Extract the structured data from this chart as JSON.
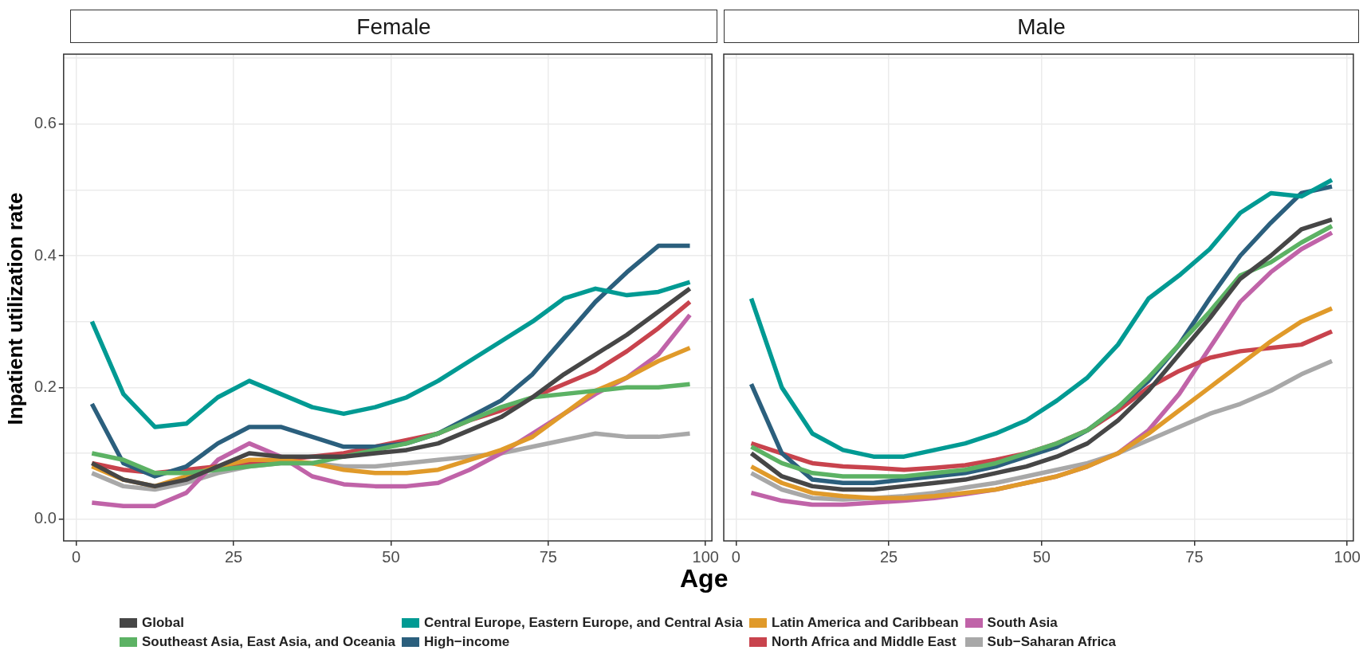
{
  "chart_data": [
    {
      "type": "line",
      "title": "Female",
      "xlabel": "Age",
      "ylabel": "Inpatient utilization rate",
      "xlim": [
        -2,
        101
      ],
      "xticks": [
        0,
        25,
        50,
        75,
        100
      ],
      "ylim": [
        -0.033,
        0.706
      ],
      "yticks": [
        {
          "value": 0,
          "label": "0.0"
        },
        {
          "value": 0.1,
          "label": null
        },
        {
          "value": 0.2,
          "label": "0.2"
        },
        {
          "value": 0.3,
          "label": null
        },
        {
          "value": 0.4,
          "label": "0.4"
        },
        {
          "value": 0.5,
          "label": null
        },
        {
          "value": 0.6,
          "label": "0.6"
        },
        {
          "value": 0.7,
          "label": null
        }
      ],
      "grid": true,
      "legend": "bottom",
      "x": [
        2.5,
        7.5,
        12.5,
        17.5,
        22.5,
        27.5,
        32.5,
        37.5,
        42.5,
        47.5,
        52.5,
        57.5,
        62.5,
        67.5,
        72.5,
        77.5,
        82.5,
        87.5,
        92.5,
        97.5
      ],
      "series": [
        {
          "name": "Global",
          "color": "#464646",
          "values": [
            0.085,
            0.06,
            0.05,
            0.06,
            0.08,
            0.1,
            0.095,
            0.095,
            0.095,
            0.1,
            0.105,
            0.115,
            0.135,
            0.155,
            0.185,
            0.22,
            0.25,
            0.28,
            0.315,
            0.35
          ]
        },
        {
          "name": "Southeast Asia, East Asia, and Oceania",
          "color": "#5cb264",
          "values": [
            0.1,
            0.09,
            0.07,
            0.07,
            0.075,
            0.08,
            0.085,
            0.085,
            0.095,
            0.105,
            0.115,
            0.13,
            0.15,
            0.17,
            0.185,
            0.19,
            0.195,
            0.2,
            0.2,
            0.205
          ]
        },
        {
          "name": "Central Europe, Eastern Europe, and Central Asia",
          "color": "#009a93",
          "values": [
            0.3,
            0.19,
            0.14,
            0.145,
            0.185,
            0.21,
            0.19,
            0.17,
            0.16,
            0.17,
            0.185,
            0.21,
            0.24,
            0.27,
            0.3,
            0.335,
            0.35,
            0.34,
            0.345,
            0.36
          ]
        },
        {
          "name": "High−income",
          "color": "#2b5f7d",
          "values": [
            0.175,
            0.085,
            0.065,
            0.08,
            0.115,
            0.14,
            0.14,
            0.125,
            0.11,
            0.11,
            0.115,
            0.13,
            0.155,
            0.18,
            0.22,
            0.275,
            0.33,
            0.375,
            0.415,
            0.415
          ]
        },
        {
          "name": "Latin America and Caribbean",
          "color": "#e09a2a",
          "values": [
            0.08,
            0.06,
            0.05,
            0.065,
            0.08,
            0.09,
            0.09,
            0.085,
            0.075,
            0.07,
            0.07,
            0.075,
            0.09,
            0.105,
            0.125,
            0.16,
            0.195,
            0.215,
            0.24,
            0.26
          ]
        },
        {
          "name": "North Africa and Middle East",
          "color": "#c8434d",
          "values": [
            0.085,
            0.075,
            0.07,
            0.075,
            0.08,
            0.085,
            0.09,
            0.095,
            0.1,
            0.11,
            0.12,
            0.13,
            0.15,
            0.165,
            0.185,
            0.205,
            0.225,
            0.255,
            0.29,
            0.33
          ]
        },
        {
          "name": "South Asia",
          "color": "#c063a8",
          "values": [
            0.025,
            0.02,
            0.02,
            0.04,
            0.09,
            0.115,
            0.095,
            0.065,
            0.053,
            0.05,
            0.05,
            0.055,
            0.075,
            0.1,
            0.13,
            0.16,
            0.19,
            0.215,
            0.25,
            0.31
          ]
        },
        {
          "name": "Sub−Saharan Africa",
          "color": "#a8a8a8",
          "values": [
            0.07,
            0.05,
            0.045,
            0.055,
            0.07,
            0.08,
            0.085,
            0.085,
            0.08,
            0.08,
            0.085,
            0.09,
            0.095,
            0.1,
            0.11,
            0.12,
            0.13,
            0.125,
            0.125,
            0.13
          ]
        }
      ]
    },
    {
      "type": "line",
      "title": "Male",
      "xlim": [
        -2,
        101
      ],
      "xticks": [
        0,
        25,
        50,
        75,
        100
      ],
      "ylim": [
        -0.033,
        0.706
      ],
      "yticks": [
        {
          "value": 0,
          "label": null
        },
        {
          "value": 0.1,
          "label": null
        },
        {
          "value": 0.2,
          "label": null
        },
        {
          "value": 0.3,
          "label": null
        },
        {
          "value": 0.4,
          "label": null
        },
        {
          "value": 0.5,
          "label": null
        },
        {
          "value": 0.6,
          "label": null
        },
        {
          "value": 0.7,
          "label": null
        }
      ],
      "grid": true,
      "tick_labels": "x",
      "x": [
        2.5,
        7.5,
        12.5,
        17.5,
        22.5,
        27.5,
        32.5,
        37.5,
        42.5,
        47.5,
        52.5,
        57.5,
        62.5,
        67.5,
        72.5,
        77.5,
        82.5,
        87.5,
        92.5,
        97.5
      ],
      "series": [
        {
          "color": "#464646",
          "values": [
            0.1,
            0.065,
            0.05,
            0.045,
            0.045,
            0.05,
            0.055,
            0.06,
            0.07,
            0.08,
            0.095,
            0.115,
            0.15,
            0.195,
            0.25,
            0.305,
            0.365,
            0.4,
            0.44,
            0.455
          ]
        },
        {
          "color": "#5cb264",
          "values": [
            0.11,
            0.085,
            0.07,
            0.065,
            0.065,
            0.065,
            0.07,
            0.075,
            0.085,
            0.1,
            0.115,
            0.135,
            0.17,
            0.215,
            0.265,
            0.315,
            0.37,
            0.39,
            0.42,
            0.445
          ]
        },
        {
          "color": "#009a93",
          "values": [
            0.335,
            0.2,
            0.13,
            0.105,
            0.095,
            0.095,
            0.105,
            0.115,
            0.13,
            0.15,
            0.18,
            0.215,
            0.265,
            0.335,
            0.37,
            0.41,
            0.465,
            0.495,
            0.49,
            0.515
          ]
        },
        {
          "color": "#2b5f7d",
          "values": [
            0.205,
            0.1,
            0.06,
            0.055,
            0.055,
            0.06,
            0.065,
            0.07,
            0.08,
            0.095,
            0.11,
            0.135,
            0.17,
            0.21,
            0.265,
            0.335,
            0.4,
            0.45,
            0.495,
            0.505
          ]
        },
        {
          "color": "#e09a2a",
          "values": [
            0.08,
            0.055,
            0.04,
            0.035,
            0.032,
            0.032,
            0.035,
            0.04,
            0.045,
            0.055,
            0.065,
            0.08,
            0.1,
            0.13,
            0.165,
            0.2,
            0.235,
            0.27,
            0.3,
            0.32
          ]
        },
        {
          "color": "#c8434d",
          "values": [
            0.115,
            0.1,
            0.085,
            0.08,
            0.078,
            0.075,
            0.078,
            0.082,
            0.09,
            0.1,
            0.115,
            0.135,
            0.165,
            0.2,
            0.225,
            0.245,
            0.255,
            0.26,
            0.265,
            0.285
          ]
        },
        {
          "color": "#c063a8",
          "values": [
            0.04,
            0.028,
            0.022,
            0.022,
            0.025,
            0.028,
            0.032,
            0.038,
            0.045,
            0.055,
            0.065,
            0.08,
            0.1,
            0.135,
            0.19,
            0.26,
            0.33,
            0.375,
            0.41,
            0.435
          ]
        },
        {
          "color": "#a8a8a8",
          "values": [
            0.07,
            0.045,
            0.032,
            0.03,
            0.032,
            0.035,
            0.04,
            0.048,
            0.055,
            0.065,
            0.075,
            0.085,
            0.1,
            0.12,
            0.14,
            0.16,
            0.175,
            0.195,
            0.22,
            0.24
          ]
        }
      ]
    }
  ]
}
